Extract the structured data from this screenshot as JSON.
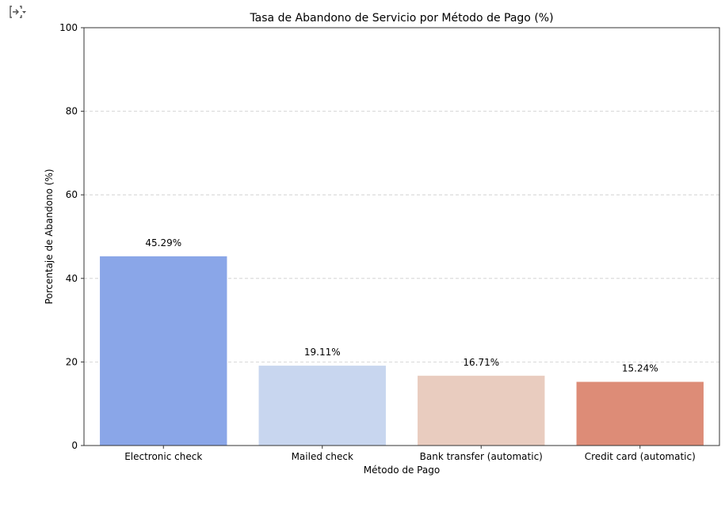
{
  "toolbar": {
    "icon": "output-icon"
  },
  "chart_data": {
    "type": "bar",
    "title": "Tasa de Abandono de Servicio por Método de Pago (%)",
    "xlabel": "Método de Pago",
    "ylabel": "Porcentaje de Abandono (%)",
    "categories": [
      "Electronic check",
      "Mailed check",
      "Bank transfer (automatic)",
      "Credit card (automatic)"
    ],
    "values": [
      45.29,
      19.11,
      16.71,
      15.24
    ],
    "data_labels": [
      "45.29%",
      "19.11%",
      "16.71%",
      "15.24%"
    ],
    "colors": [
      "#8aa6e8",
      "#c8d6ef",
      "#e9ccbf",
      "#dd8c77"
    ],
    "ylim": [
      0,
      100
    ],
    "yticks": [
      0,
      20,
      40,
      60,
      80,
      100
    ],
    "ytick_labels": [
      "0",
      "20",
      "40",
      "60",
      "80",
      "100"
    ],
    "grid": "y-dashed",
    "legend": "none"
  }
}
